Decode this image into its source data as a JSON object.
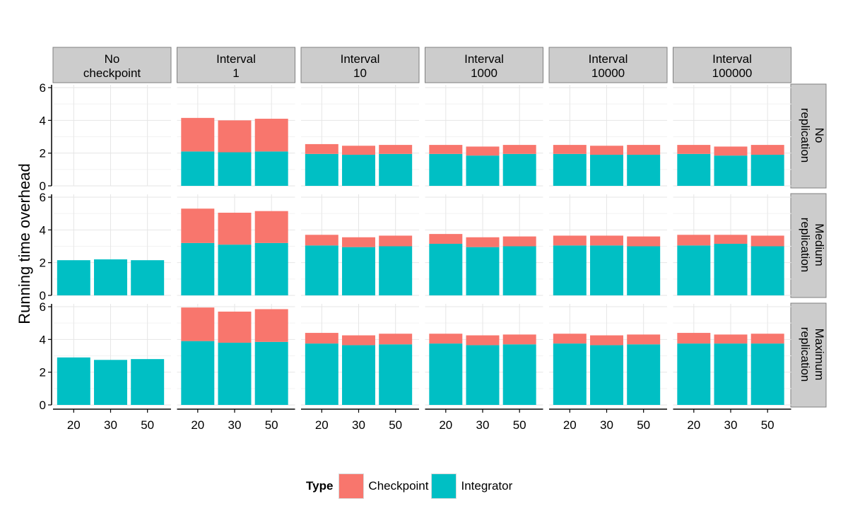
{
  "chart_data": {
    "type": "bar",
    "stacked": true,
    "ylabel": "Running time overhead",
    "xlabel": "",
    "ylim": [
      0,
      6
    ],
    "yticks": [
      0,
      2,
      4,
      6
    ],
    "categories": [
      "20",
      "30",
      "50"
    ],
    "columns": [
      {
        "label_lines": [
          "No",
          "checkpoint"
        ]
      },
      {
        "label_lines": [
          "Interval",
          "1"
        ]
      },
      {
        "label_lines": [
          "Interval",
          "10"
        ]
      },
      {
        "label_lines": [
          "Interval",
          "1000"
        ]
      },
      {
        "label_lines": [
          "Interval",
          "10000"
        ]
      },
      {
        "label_lines": [
          "Interval",
          "100000"
        ]
      }
    ],
    "rows": [
      {
        "label_lines": [
          "No",
          "replication"
        ]
      },
      {
        "label_lines": [
          "Medium",
          "replication"
        ]
      },
      {
        "label_lines": [
          "Maximum",
          "replication"
        ]
      }
    ],
    "series": [
      {
        "name": "Checkpoint",
        "color": "#F8766D"
      },
      {
        "name": "Integrator",
        "color": "#00BFC4"
      }
    ],
    "legend": {
      "title": "Type",
      "position": "bottom"
    },
    "panels": [
      [
        null,
        {
          "Integrator": [
            2.1,
            2.05,
            2.1
          ],
          "Checkpoint": [
            2.05,
            1.95,
            2.0
          ]
        },
        {
          "Integrator": [
            1.95,
            1.9,
            1.95
          ],
          "Checkpoint": [
            0.6,
            0.55,
            0.55
          ]
        },
        {
          "Integrator": [
            1.95,
            1.85,
            1.95
          ],
          "Checkpoint": [
            0.55,
            0.55,
            0.55
          ]
        },
        {
          "Integrator": [
            1.95,
            1.9,
            1.9
          ],
          "Checkpoint": [
            0.55,
            0.55,
            0.6
          ]
        },
        {
          "Integrator": [
            1.95,
            1.85,
            1.9
          ],
          "Checkpoint": [
            0.55,
            0.55,
            0.6
          ]
        }
      ],
      [
        {
          "Integrator": [
            2.15,
            2.2,
            2.15
          ],
          "Checkpoint": [
            0,
            0,
            0
          ]
        },
        {
          "Integrator": [
            3.2,
            3.1,
            3.2
          ],
          "Checkpoint": [
            2.1,
            1.95,
            1.95
          ]
        },
        {
          "Integrator": [
            3.05,
            2.95,
            3.0
          ],
          "Checkpoint": [
            0.65,
            0.6,
            0.65
          ]
        },
        {
          "Integrator": [
            3.15,
            2.95,
            3.0
          ],
          "Checkpoint": [
            0.6,
            0.6,
            0.6
          ]
        },
        {
          "Integrator": [
            3.05,
            3.05,
            3.0
          ],
          "Checkpoint": [
            0.6,
            0.6,
            0.6
          ]
        },
        {
          "Integrator": [
            3.05,
            3.15,
            3.0
          ],
          "Checkpoint": [
            0.65,
            0.55,
            0.65
          ]
        }
      ],
      [
        {
          "Integrator": [
            2.9,
            2.75,
            2.8
          ],
          "Checkpoint": [
            0,
            0,
            0
          ]
        },
        {
          "Integrator": [
            3.9,
            3.8,
            3.85
          ],
          "Checkpoint": [
            2.05,
            1.9,
            2.0
          ]
        },
        {
          "Integrator": [
            3.75,
            3.65,
            3.7
          ],
          "Checkpoint": [
            0.65,
            0.6,
            0.65
          ]
        },
        {
          "Integrator": [
            3.75,
            3.65,
            3.7
          ],
          "Checkpoint": [
            0.6,
            0.6,
            0.6
          ]
        },
        {
          "Integrator": [
            3.75,
            3.65,
            3.7
          ],
          "Checkpoint": [
            0.6,
            0.6,
            0.6
          ]
        },
        {
          "Integrator": [
            3.75,
            3.75,
            3.75
          ],
          "Checkpoint": [
            0.65,
            0.55,
            0.6
          ]
        }
      ]
    ]
  }
}
